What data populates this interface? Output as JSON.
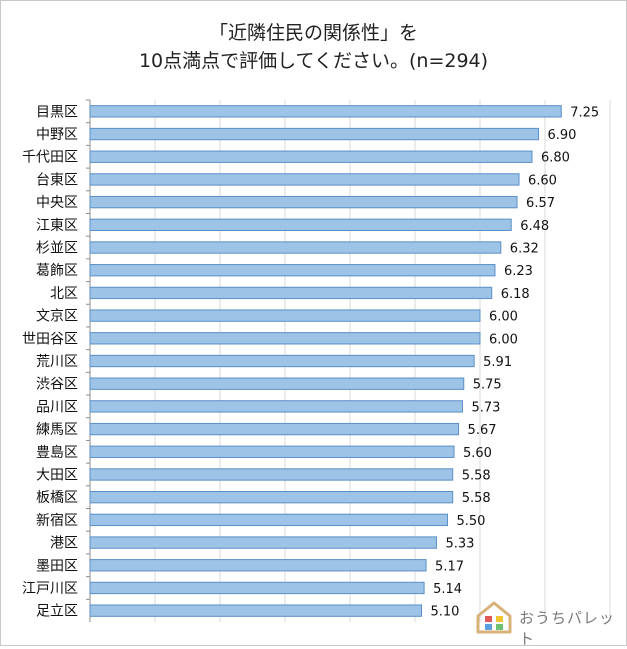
{
  "chart_data": {
    "type": "bar",
    "orientation": "horizontal",
    "title_line1": "「近隣住民の関係性」を",
    "title_line2": "10点満点で評価してください。(n=294)",
    "categories": [
      "目黒区",
      "中野区",
      "千代田区",
      "台東区",
      "中央区",
      "江東区",
      "杉並区",
      "葛飾区",
      "北区",
      "文京区",
      "世田谷区",
      "荒川区",
      "渋谷区",
      "品川区",
      "練馬区",
      "豊島区",
      "大田区",
      "板橋区",
      "新宿区",
      "港区",
      "墨田区",
      "江戸川区",
      "足立区"
    ],
    "values": [
      7.25,
      6.9,
      6.8,
      6.6,
      6.57,
      6.48,
      6.32,
      6.23,
      6.18,
      6.0,
      6.0,
      5.91,
      5.75,
      5.73,
      5.67,
      5.6,
      5.58,
      5.58,
      5.5,
      5.33,
      5.17,
      5.14,
      5.1
    ],
    "value_labels": [
      "7.25",
      "6.90",
      "6.80",
      "6.60",
      "6.57",
      "6.48",
      "6.32",
      "6.23",
      "6.18",
      "6.00",
      "6.00",
      "5.91",
      "5.75",
      "5.73",
      "5.67",
      "5.60",
      "5.58",
      "5.58",
      "5.50",
      "5.33",
      "5.17",
      "5.14",
      "5.10"
    ],
    "xlim": [
      0,
      8
    ],
    "grid": true,
    "bar_color": "#9dc3e6",
    "bar_border": "#5b8fc7"
  },
  "logo": {
    "text": "おうちパレット",
    "icon": "house-palette-icon"
  }
}
